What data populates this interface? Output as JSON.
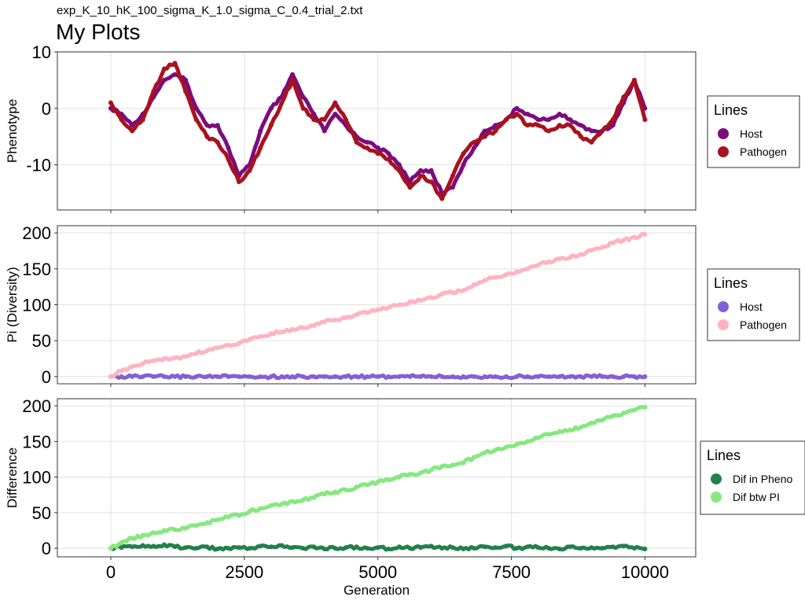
{
  "header": {
    "subtitle": "exp_K_10_hK_100_sigma_K_1.0_sigma_C_0.4_trial_2.txt",
    "title": "My Plots"
  },
  "chart_data": [
    {
      "type": "line",
      "ylabel": "Phenotype",
      "xlabel": "",
      "xlim": [
        -1000,
        10950
      ],
      "ylim": [
        -18,
        10
      ],
      "yticks": [
        10,
        0,
        -10
      ],
      "xticks": [
        0,
        2500,
        5000,
        7500,
        10000
      ],
      "show_x_tick_labels": false,
      "legend": {
        "title": "Lines",
        "position": "right"
      },
      "x": [
        0,
        200,
        400,
        600,
        800,
        1000,
        1200,
        1400,
        1600,
        1800,
        2000,
        2200,
        2400,
        2600,
        2800,
        3000,
        3200,
        3400,
        3600,
        3800,
        4000,
        4200,
        4400,
        4600,
        4800,
        5000,
        5200,
        5400,
        5600,
        5800,
        6000,
        6200,
        6400,
        6600,
        6800,
        7000,
        7200,
        7400,
        7600,
        7800,
        8000,
        8200,
        8400,
        8600,
        8800,
        9000,
        9200,
        9400,
        9600,
        9800,
        10000
      ],
      "series": [
        {
          "name": "Host",
          "color": "#7b0c7e",
          "values": [
            0,
            -1,
            -3,
            -1,
            2,
            5,
            6,
            5,
            0,
            -3,
            -3,
            -7,
            -12,
            -10,
            -4,
            0,
            2,
            6,
            2,
            -1,
            -4,
            -1,
            -3,
            -5,
            -6,
            -7,
            -8,
            -10,
            -13,
            -11,
            -11,
            -15,
            -14,
            -10,
            -7,
            -4,
            -3,
            -2,
            0,
            -1,
            -2,
            -2,
            -1,
            -2,
            -3,
            -4,
            -4,
            -3,
            1,
            5,
            0
          ]
        },
        {
          "name": "Pathogen",
          "color": "#a8121e",
          "values": [
            1,
            -2,
            -4,
            -2,
            3,
            7,
            8,
            3,
            -2,
            -5,
            -6,
            -9,
            -13,
            -11,
            -7,
            -3,
            1,
            5,
            0,
            -2,
            -2,
            1,
            -2,
            -6,
            -7,
            -8,
            -9,
            -11,
            -14,
            -12,
            -13,
            -16,
            -12,
            -8,
            -6,
            -5,
            -4,
            -2,
            -1,
            -3,
            -3,
            -4,
            -3,
            -3,
            -5,
            -6,
            -4,
            -2,
            2,
            5,
            -2
          ]
        }
      ]
    },
    {
      "type": "line",
      "ylabel": "Pi (Diversity)",
      "xlabel": "",
      "xlim": [
        -1000,
        10950
      ],
      "ylim": [
        -10,
        210
      ],
      "yticks": [
        200,
        150,
        100,
        50,
        0
      ],
      "xticks": [
        0,
        2500,
        5000,
        7500,
        10000
      ],
      "show_x_tick_labels": false,
      "legend": {
        "title": "Lines",
        "position": "right"
      },
      "x": [
        0,
        200,
        400,
        600,
        800,
        1000,
        1200,
        1400,
        1600,
        1800,
        2000,
        2200,
        2400,
        2600,
        2800,
        3000,
        3200,
        3400,
        3600,
        3800,
        4000,
        4200,
        4400,
        4600,
        4800,
        5000,
        5200,
        5400,
        5600,
        5800,
        6000,
        6200,
        6400,
        6600,
        6800,
        7000,
        7200,
        7400,
        7600,
        7800,
        8000,
        8200,
        8400,
        8600,
        8800,
        9000,
        9200,
        9400,
        9600,
        9800,
        10000
      ],
      "series": [
        {
          "name": "Host",
          "color": "#8460d6",
          "values": [
            0,
            0,
            0,
            0,
            0,
            0,
            0,
            0,
            0,
            0,
            0,
            0,
            0,
            0,
            0,
            0,
            0,
            0,
            0,
            0,
            0,
            0,
            0,
            0,
            0,
            0,
            0,
            0,
            0,
            0,
            0,
            0,
            0,
            0,
            0,
            0,
            0,
            0,
            0,
            0,
            0,
            0,
            0,
            0,
            0,
            0,
            0,
            0,
            0,
            0,
            0
          ]
        },
        {
          "name": "Pathogen",
          "color": "#ffb3c1",
          "values": [
            0,
            8,
            14,
            18,
            22,
            25,
            26,
            28,
            32,
            36,
            40,
            44,
            46,
            52,
            56,
            60,
            62,
            66,
            68,
            71,
            76,
            79,
            82,
            86,
            89,
            93,
            96,
            100,
            104,
            106,
            110,
            115,
            117,
            120,
            128,
            134,
            138,
            142,
            146,
            150,
            155,
            160,
            164,
            166,
            170,
            176,
            180,
            186,
            190,
            194,
            198
          ]
        }
      ]
    },
    {
      "type": "line",
      "ylabel": "Difference",
      "xlabel": "Generation",
      "xlim": [
        -1000,
        10950
      ],
      "ylim": [
        -12,
        210
      ],
      "yticks": [
        200,
        150,
        100,
        50,
        0
      ],
      "xticks": [
        0,
        2500,
        5000,
        7500,
        10000
      ],
      "show_x_tick_labels": true,
      "legend": {
        "title": "Lines",
        "position": "right"
      },
      "x": [
        0,
        200,
        400,
        600,
        800,
        1000,
        1200,
        1400,
        1600,
        1800,
        2000,
        2200,
        2400,
        2600,
        2800,
        3000,
        3200,
        3400,
        3600,
        3800,
        4000,
        4200,
        4400,
        4600,
        4800,
        5000,
        5200,
        5400,
        5600,
        5800,
        6000,
        6200,
        6400,
        6600,
        6800,
        7000,
        7200,
        7400,
        7600,
        7800,
        8000,
        8200,
        8400,
        8600,
        8800,
        9000,
        9200,
        9400,
        9600,
        9800,
        10000
      ],
      "series": [
        {
          "name": "Dif in Pheno",
          "color": "#23804a",
          "values": [
            0,
            1,
            2,
            4,
            3,
            5,
            2,
            1,
            0,
            2,
            -1,
            0,
            1,
            0,
            3,
            2,
            4,
            1,
            0,
            2,
            -1,
            0,
            1,
            2,
            0,
            1,
            -1,
            2,
            0,
            1,
            3,
            0,
            1,
            -1,
            0,
            2,
            1,
            3,
            0,
            2,
            1,
            0,
            -1,
            2,
            0,
            1,
            0,
            2,
            3,
            0,
            -1
          ]
        },
        {
          "name": "Dif btw PI",
          "color": "#86e87f",
          "values": [
            0,
            8,
            14,
            18,
            22,
            25,
            26,
            28,
            32,
            36,
            40,
            44,
            46,
            52,
            56,
            60,
            62,
            66,
            68,
            71,
            76,
            79,
            82,
            86,
            89,
            93,
            96,
            100,
            104,
            106,
            110,
            115,
            117,
            120,
            128,
            134,
            138,
            142,
            146,
            150,
            155,
            160,
            164,
            166,
            170,
            176,
            180,
            186,
            190,
            194,
            198
          ]
        }
      ]
    }
  ]
}
